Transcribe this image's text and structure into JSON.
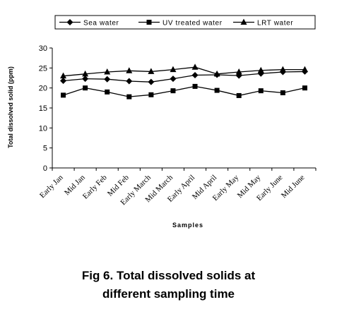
{
  "chart_data": {
    "type": "line",
    "categories": [
      "Early Jan",
      "Mid Jan",
      "Early Feb",
      "Mid Feb",
      "Early March",
      "Mid March",
      "Early April",
      "Mid April",
      "Early May",
      "Mid May",
      "Early June",
      "Mid June"
    ],
    "series": [
      {
        "name": "Sea water",
        "marker": "diamond",
        "values": [
          21.8,
          22.3,
          22.2,
          21.7,
          21.5,
          22.3,
          23.2,
          23.3,
          23.1,
          23.6,
          24.0,
          24.1
        ]
      },
      {
        "name": "UV treated water",
        "marker": "square",
        "values": [
          18.2,
          20.0,
          19.0,
          17.8,
          18.3,
          19.3,
          20.4,
          19.4,
          18.1,
          19.3,
          18.8,
          20.0
        ]
      },
      {
        "name": "LRT water",
        "marker": "triangle",
        "values": [
          23.0,
          23.5,
          24.0,
          24.3,
          24.1,
          24.6,
          25.2,
          23.5,
          24.0,
          24.4,
          24.6,
          24.6
        ]
      }
    ],
    "ylabel": "Total dissolved solid (ppm)",
    "xlabel": "Samples",
    "ylim": [
      0,
      30
    ],
    "yticks": [
      0,
      5,
      10,
      15,
      20,
      25,
      30
    ],
    "grid": false,
    "legend_position": "top",
    "line_color": "#000000"
  },
  "caption": {
    "line1": "Fig 6. Total dissolved solids at",
    "line2": "different sampling time"
  }
}
